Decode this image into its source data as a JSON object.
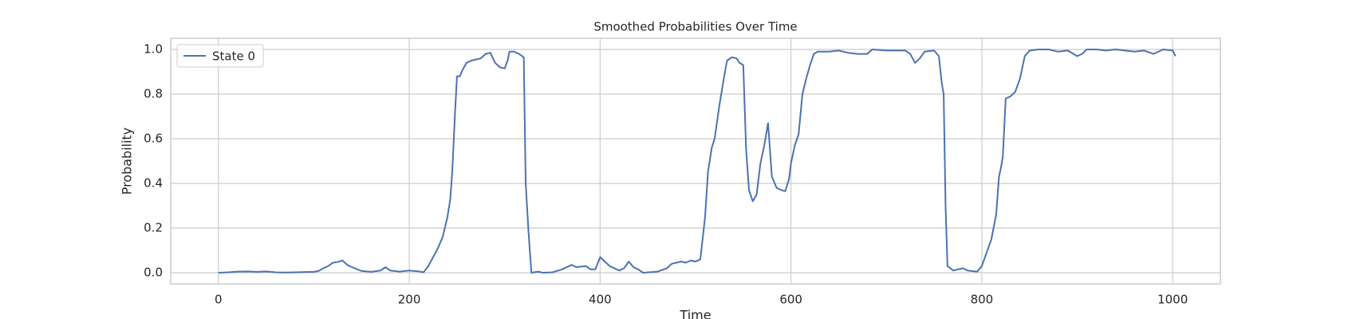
{
  "chart_data": {
    "type": "line",
    "title": "Smoothed Probabilities Over Time",
    "x_label": "Time",
    "y_label": "Probability",
    "x": [
      0,
      10,
      20,
      30,
      40,
      50,
      60,
      70,
      80,
      90,
      100,
      105,
      110,
      115,
      120,
      125,
      130,
      135,
      140,
      150,
      160,
      170,
      175,
      180,
      190,
      200,
      210,
      215,
      220,
      225,
      230,
      235,
      240,
      243,
      245,
      248,
      250,
      253,
      256,
      260,
      265,
      270,
      275,
      280,
      285,
      290,
      295,
      300,
      303,
      305,
      310,
      315,
      320,
      322,
      325,
      328,
      335,
      340,
      350,
      360,
      370,
      375,
      385,
      390,
      395,
      400,
      405,
      410,
      420,
      425,
      430,
      435,
      440,
      445,
      460,
      470,
      475,
      480,
      485,
      490,
      495,
      500,
      505,
      510,
      513,
      517,
      520,
      525,
      530,
      533,
      538,
      543,
      546,
      550,
      553,
      556,
      560,
      564,
      568,
      572,
      576,
      580,
      585,
      590,
      594,
      598,
      600,
      604,
      608,
      612,
      616,
      620,
      624,
      628,
      640,
      650,
      660,
      670,
      680,
      685,
      700,
      720,
      725,
      730,
      735,
      740,
      750,
      755,
      758,
      760,
      762,
      764,
      770,
      780,
      785,
      795,
      800,
      805,
      810,
      815,
      818,
      820,
      822,
      825,
      830,
      835,
      840,
      845,
      850,
      860,
      870,
      880,
      890,
      900,
      905,
      910,
      920,
      930,
      940,
      950,
      960,
      970,
      980,
      990,
      1000,
      1003
    ],
    "series": [
      {
        "name": "State 0",
        "color": "#4c72b0",
        "values": [
          0,
          0.002,
          0.005,
          0.006,
          0.004,
          0.006,
          0.002,
          0.001,
          0.002,
          0.003,
          0.004,
          0.008,
          0.02,
          0.03,
          0.045,
          0.048,
          0.055,
          0.035,
          0.025,
          0.008,
          0.004,
          0.01,
          0.025,
          0.01,
          0.005,
          0.01,
          0.006,
          0.002,
          0.03,
          0.07,
          0.11,
          0.16,
          0.25,
          0.33,
          0.45,
          0.72,
          0.88,
          0.88,
          0.91,
          0.94,
          0.95,
          0.955,
          0.96,
          0.98,
          0.985,
          0.94,
          0.92,
          0.915,
          0.95,
          0.99,
          0.99,
          0.98,
          0.965,
          0.4,
          0.18,
          0.0,
          0.005,
          0.0,
          0.002,
          0.015,
          0.035,
          0.025,
          0.03,
          0.015,
          0.015,
          0.07,
          0.05,
          0.03,
          0.01,
          0.02,
          0.05,
          0.025,
          0.015,
          0.0,
          0.005,
          0.02,
          0.04,
          0.045,
          0.05,
          0.045,
          0.055,
          0.05,
          0.06,
          0.25,
          0.45,
          0.56,
          0.6,
          0.75,
          0.88,
          0.95,
          0.965,
          0.96,
          0.94,
          0.93,
          0.55,
          0.37,
          0.32,
          0.35,
          0.49,
          0.57,
          0.67,
          0.43,
          0.38,
          0.37,
          0.365,
          0.42,
          0.49,
          0.57,
          0.62,
          0.8,
          0.87,
          0.93,
          0.98,
          0.99,
          0.99,
          0.995,
          0.985,
          0.98,
          0.98,
          1.0,
          0.995,
          0.995,
          0.98,
          0.94,
          0.96,
          0.99,
          0.995,
          0.97,
          0.85,
          0.8,
          0.3,
          0.03,
          0.01,
          0.02,
          0.01,
          0.005,
          0.03,
          0.09,
          0.15,
          0.26,
          0.43,
          0.47,
          0.52,
          0.78,
          0.79,
          0.81,
          0.87,
          0.97,
          0.995,
          1.0,
          1.0,
          0.99,
          0.995,
          0.97,
          0.98,
          1.0,
          1.0,
          0.995,
          1.0,
          0.995,
          0.99,
          0.995,
          0.98,
          1.0,
          0.995,
          0.97
        ]
      }
    ],
    "xlim": [
      -50,
      1050
    ],
    "xticks": [
      0,
      200,
      400,
      600,
      800,
      1000
    ],
    "ylim": [
      -0.05,
      1.05
    ],
    "yticks": [
      {
        "value": 0,
        "label": "0.0"
      },
      0.2,
      0.4,
      0.6,
      0.8,
      {
        "value": 1,
        "label": "1.0"
      }
    ],
    "grid": true,
    "legend": "upper left"
  }
}
